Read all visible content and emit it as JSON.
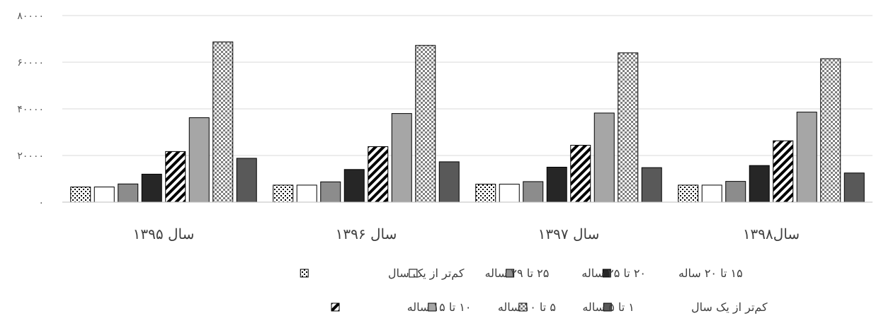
{
  "chart_data": {
    "type": "bar",
    "title": "",
    "xlabel": "",
    "ylabel": "",
    "ylim": [
      0,
      80000
    ],
    "yticks": [
      "۰",
      "۲۰۰۰۰",
      "۴۰۰۰۰",
      "۶۰۰۰۰",
      "۸۰۰۰۰"
    ],
    "ytick_values": [
      0,
      20000,
      40000,
      60000,
      80000
    ],
    "grid": true,
    "legend_position": "bottom",
    "categories": [
      "سال ۱۳۹۵",
      "سال ۱۳۹۶",
      "سال ۱۳۹۷",
      "سال۱۳۹۸"
    ],
    "series": [
      {
        "name": "کم‌تر از یک سال",
        "pattern": "dots",
        "fill": "#ffffff",
        "values": [
          6500,
          7300,
          7700,
          7300
        ]
      },
      {
        "name": "۲۵ تا ۲۹ ساله",
        "pattern": "none",
        "fill": "#ffffff",
        "values": [
          6500,
          7300,
          7700,
          7300
        ]
      },
      {
        "name": "۲۰ تا ۲۵ ساله",
        "pattern": "none",
        "fill": "#8c8c8c",
        "values": [
          7800,
          8700,
          8800,
          8900
        ]
      },
      {
        "name": "۱۵ تا ۲۰ ساله",
        "pattern": "none",
        "fill": "#262626",
        "values": [
          12000,
          14000,
          15000,
          15700
        ]
      },
      {
        "name": "۱۰ تا ۱۵ ساله",
        "pattern": "diagonal",
        "fill": "#ffffff",
        "values": [
          21700,
          23800,
          24400,
          26300
        ]
      },
      {
        "name": "۵ تا ۱۰ ساله",
        "pattern": "none",
        "fill": "#a6a6a6",
        "values": [
          36200,
          38000,
          38200,
          38600
        ]
      },
      {
        "name": "۱ تا ۵ ساله",
        "pattern": "checker",
        "fill": "#bfbfbf",
        "values": [
          68700,
          67200,
          64000,
          61500
        ]
      },
      {
        "name": "کم‌تر از یک سال",
        "pattern": "none",
        "fill": "#595959",
        "values": [
          18800,
          17300,
          14800,
          12500
        ]
      }
    ]
  }
}
